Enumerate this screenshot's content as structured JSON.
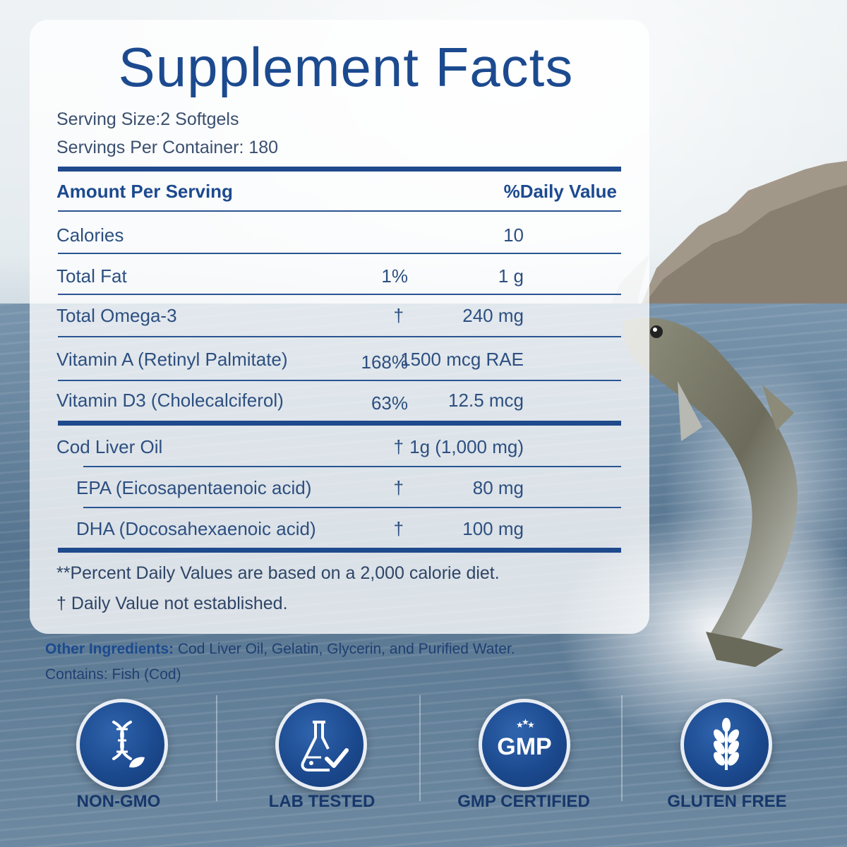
{
  "title": "Supplement Facts",
  "serving_size": "Serving Size:2 Softgels",
  "servings_per_container": "Servings Per Container: 180",
  "header": {
    "amount": "Amount Per Serving",
    "daily_value": "%Daily Value"
  },
  "rows": [
    {
      "name": "Calories",
      "amount": "10",
      "dv": ""
    },
    {
      "name": "Total Fat",
      "amount": "1 g",
      "dv": "1%"
    },
    {
      "name": "Total Omega-3",
      "amount": "240 mg",
      "dv": "†"
    },
    {
      "name": "Vitamin A (Retinyl Palmitate)",
      "amount": "1500 mcg RAE",
      "dv": "168%"
    },
    {
      "name": "Vitamin D3 (Cholecalciferol)",
      "amount": "12.5 mcg",
      "dv": "63%"
    },
    {
      "name": "Cod Liver Oil",
      "amount": "1g (1,000 mg)",
      "dv": "†"
    },
    {
      "name": "EPA (Eicosapentaenoic acid)",
      "amount": "80 mg",
      "dv": "†"
    },
    {
      "name": "DHA (Docosahexaenoic acid)",
      "amount": "100 mg",
      "dv": "†"
    }
  ],
  "footnote_1": "**Percent Daily Values are based on a 2,000 calorie diet.",
  "footnote_2": "† Daily Value not established.",
  "other_ingredients_label": "Other Ingredients:",
  "other_ingredients": " Cod Liver Oil, Gelatin, Glycerin, and Purified Water.",
  "contains": "Contains: Fish (Cod)",
  "badges": [
    {
      "label": "NON-GMO",
      "icon": "dna-leaf-icon"
    },
    {
      "label": "LAB TESTED",
      "icon": "flask-check-icon"
    },
    {
      "label": "GMP CERTIFIED",
      "icon": "gmp-stars-icon",
      "icon_text": "GMP"
    },
    {
      "label": "GLUTEN FREE",
      "icon": "wheat-icon"
    }
  ],
  "colors": {
    "brand_blue": "#1c4a8f",
    "text_blue": "#2d4f80",
    "rule_blue": "#1f4a8c"
  }
}
